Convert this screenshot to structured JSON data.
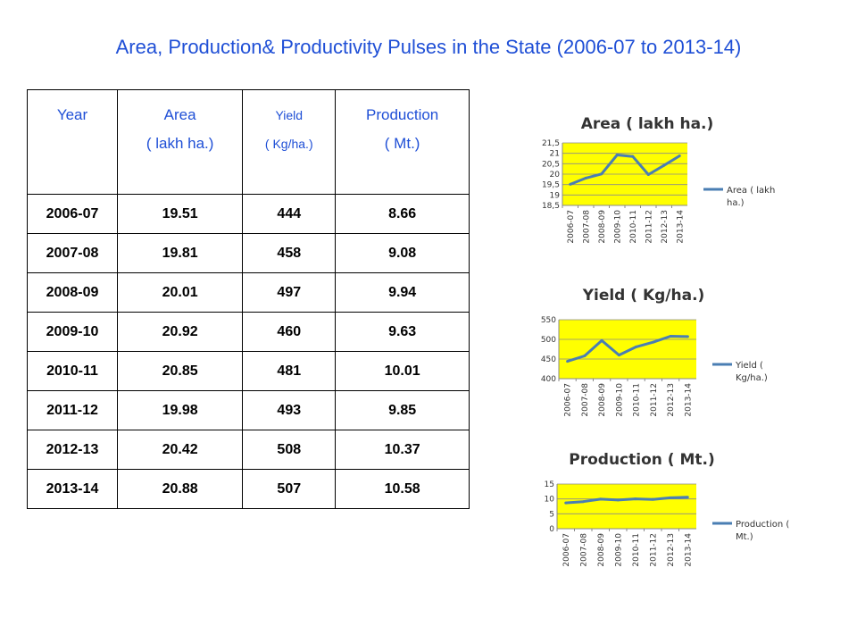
{
  "title": "Area, Production& Productivity Pulses in the State   (2006-07 to 2013-14)",
  "table": {
    "headers": [
      {
        "main": "Year",
        "sub": ""
      },
      {
        "main": "Area",
        "sub": "( lakh ha.)"
      },
      {
        "main": "Yield",
        "sub": "( Kg/ha.)"
      },
      {
        "main": "Production",
        "sub": "( Mt.)"
      }
    ],
    "rows": [
      [
        "2006-07",
        "19.51",
        "444",
        "8.66"
      ],
      [
        "2007-08",
        "19.81",
        "458",
        "9.08"
      ],
      [
        "2008-09",
        "20.01",
        "497",
        "9.94"
      ],
      [
        "2009-10",
        "20.92",
        "460",
        "9.63"
      ],
      [
        "2010-11",
        "20.85",
        "481",
        "10.01"
      ],
      [
        "2011-12",
        "19.98",
        "493",
        "9.85"
      ],
      [
        "2012-13",
        "20.42",
        "508",
        "10.37"
      ],
      [
        "2013-14",
        "20.88",
        "507",
        "10.58"
      ]
    ]
  },
  "chart_data": [
    {
      "type": "line",
      "title": "Area  ( lakh ha.)",
      "x": [
        "2006-07",
        "2007-08",
        "2008-09",
        "2009-10",
        "2010-11",
        "2011-12",
        "2012-13",
        "2013-14"
      ],
      "series": [
        {
          "name": "Area  ( lakh ha.)",
          "values": [
            19.51,
            19.81,
            20.01,
            20.92,
            20.85,
            19.98,
            20.42,
            20.88
          ]
        }
      ],
      "ylim": [
        18.5,
        21.5
      ],
      "yticks": [
        18.5,
        19,
        19.5,
        20,
        20.5,
        21,
        21.5
      ],
      "ytick_labels": [
        "18,5",
        "19",
        "19,5",
        "20",
        "20,5",
        "21",
        "21,5"
      ],
      "legend_label": [
        "Area  ( lakh",
        "ha.)"
      ],
      "legend": "right",
      "grid": true,
      "plot_bg": "#ffff00",
      "line_color": "#4a7eb3"
    },
    {
      "type": "line",
      "title": "Yield ( Kg/ha.)",
      "x": [
        "2006-07",
        "2007-08",
        "2008-09",
        "2009-10",
        "2010-11",
        "2011-12",
        "2012-13",
        "2013-14"
      ],
      "series": [
        {
          "name": "Yield ( Kg/ha.)",
          "values": [
            444,
            458,
            497,
            460,
            481,
            493,
            508,
            507
          ]
        }
      ],
      "ylim": [
        400,
        550
      ],
      "yticks": [
        400,
        450,
        500,
        550
      ],
      "ytick_labels": [
        "400",
        "450",
        "500",
        "550"
      ],
      "legend_label": [
        "Yield (",
        "Kg/ha.)"
      ],
      "legend": "right",
      "grid": true,
      "plot_bg": "#ffff00",
      "line_color": "#4a7eb3"
    },
    {
      "type": "line",
      "title": "Production  ( Mt.)",
      "x": [
        "2006-07",
        "2007-08",
        "2008-09",
        "2009-10",
        "2010-11",
        "2011-12",
        "2012-13",
        "2013-14"
      ],
      "series": [
        {
          "name": "Production  ( Mt.)",
          "values": [
            8.66,
            9.08,
            9.94,
            9.63,
            10.01,
            9.85,
            10.37,
            10.58
          ]
        }
      ],
      "ylim": [
        0,
        15
      ],
      "yticks": [
        0,
        5,
        10,
        15
      ],
      "ytick_labels": [
        "0",
        "5",
        "10",
        "15"
      ],
      "legend_label": [
        "Production  (",
        "Mt.)"
      ],
      "legend": "right",
      "grid": true,
      "plot_bg": "#ffff00",
      "line_color": "#4a7eb3"
    }
  ]
}
